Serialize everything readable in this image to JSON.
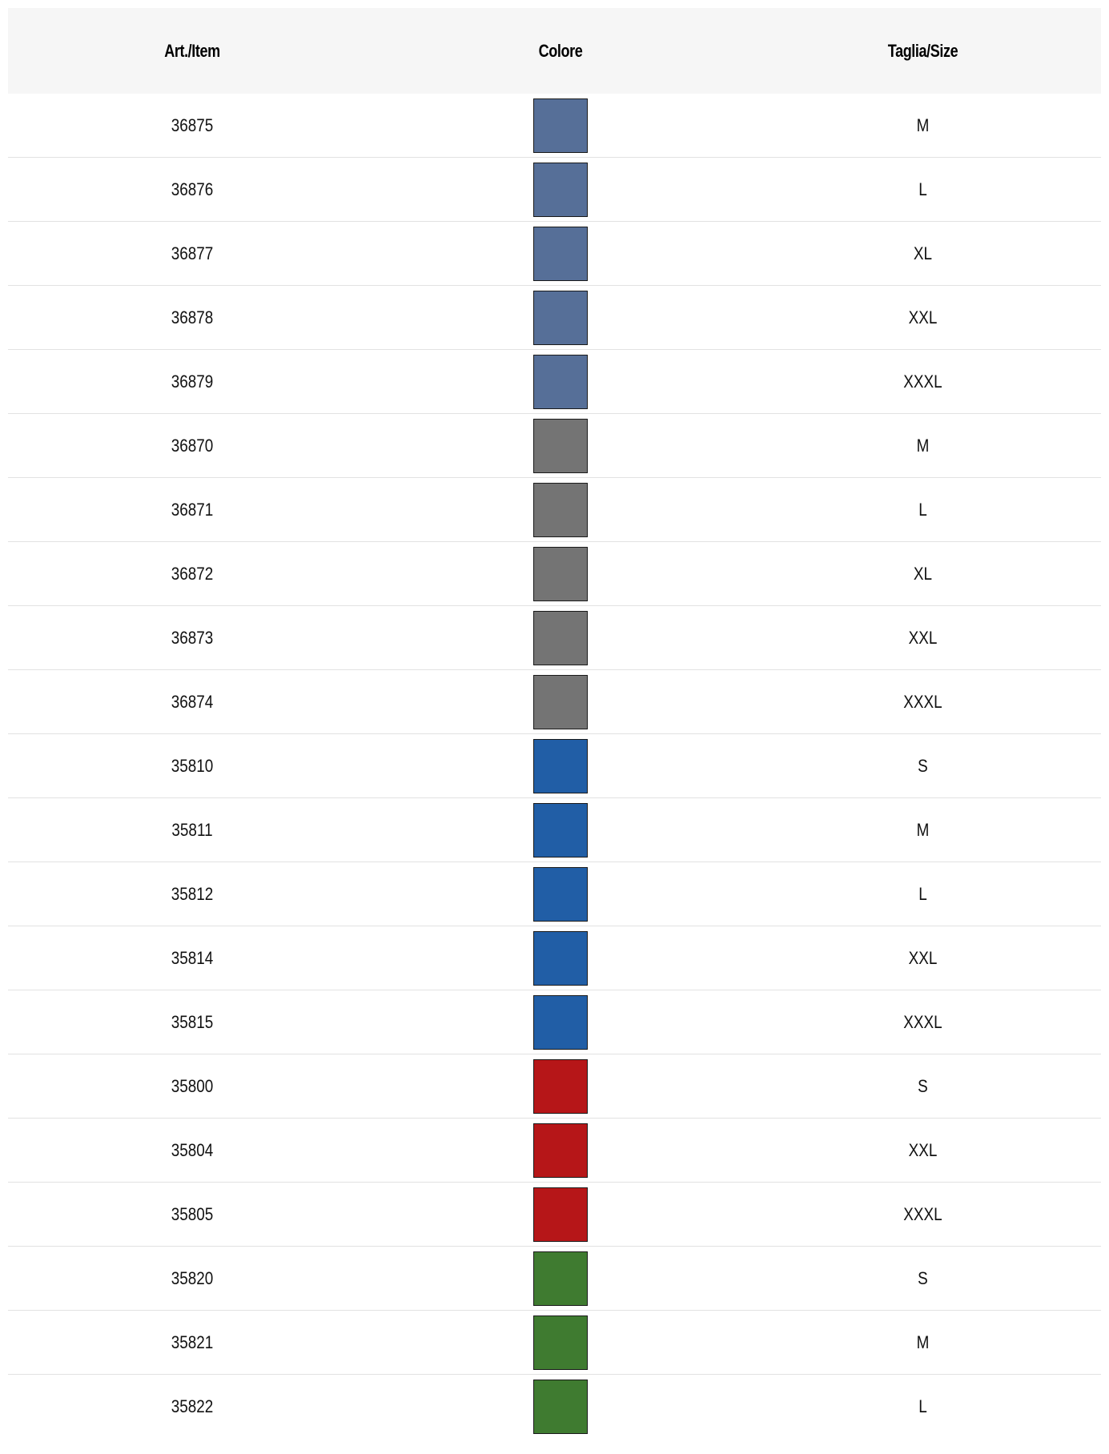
{
  "table": {
    "headers": {
      "item": "Art./Item",
      "color": "Colore",
      "size": "Taglia/Size"
    },
    "rows": [
      {
        "item": "36875",
        "color": "#566f98",
        "size": "M"
      },
      {
        "item": "36876",
        "color": "#566f98",
        "size": "L"
      },
      {
        "item": "36877",
        "color": "#566f98",
        "size": "XL"
      },
      {
        "item": "36878",
        "color": "#566f98",
        "size": "XXL"
      },
      {
        "item": "36879",
        "color": "#566f98",
        "size": "XXXL"
      },
      {
        "item": "36870",
        "color": "#747474",
        "size": "M"
      },
      {
        "item": "36871",
        "color": "#747474",
        "size": "L"
      },
      {
        "item": "36872",
        "color": "#747474",
        "size": "XL"
      },
      {
        "item": "36873",
        "color": "#747474",
        "size": "XXL"
      },
      {
        "item": "36874",
        "color": "#747474",
        "size": "XXXL"
      },
      {
        "item": "35810",
        "color": "#215ea6",
        "size": "S"
      },
      {
        "item": "35811",
        "color": "#215ea6",
        "size": "M"
      },
      {
        "item": "35812",
        "color": "#215ea6",
        "size": "L"
      },
      {
        "item": "35814",
        "color": "#215ea6",
        "size": "XXL"
      },
      {
        "item": "35815",
        "color": "#215ea6",
        "size": "XXXL"
      },
      {
        "item": "35800",
        "color": "#b61618",
        "size": "S"
      },
      {
        "item": "35804",
        "color": "#b61618",
        "size": "XXL"
      },
      {
        "item": "35805",
        "color": "#b61618",
        "size": "XXXL"
      },
      {
        "item": "35820",
        "color": "#3f7b30",
        "size": "S"
      },
      {
        "item": "35821",
        "color": "#3f7b30",
        "size": "M"
      },
      {
        "item": "35822",
        "color": "#3f7b30",
        "size": "L"
      }
    ]
  }
}
